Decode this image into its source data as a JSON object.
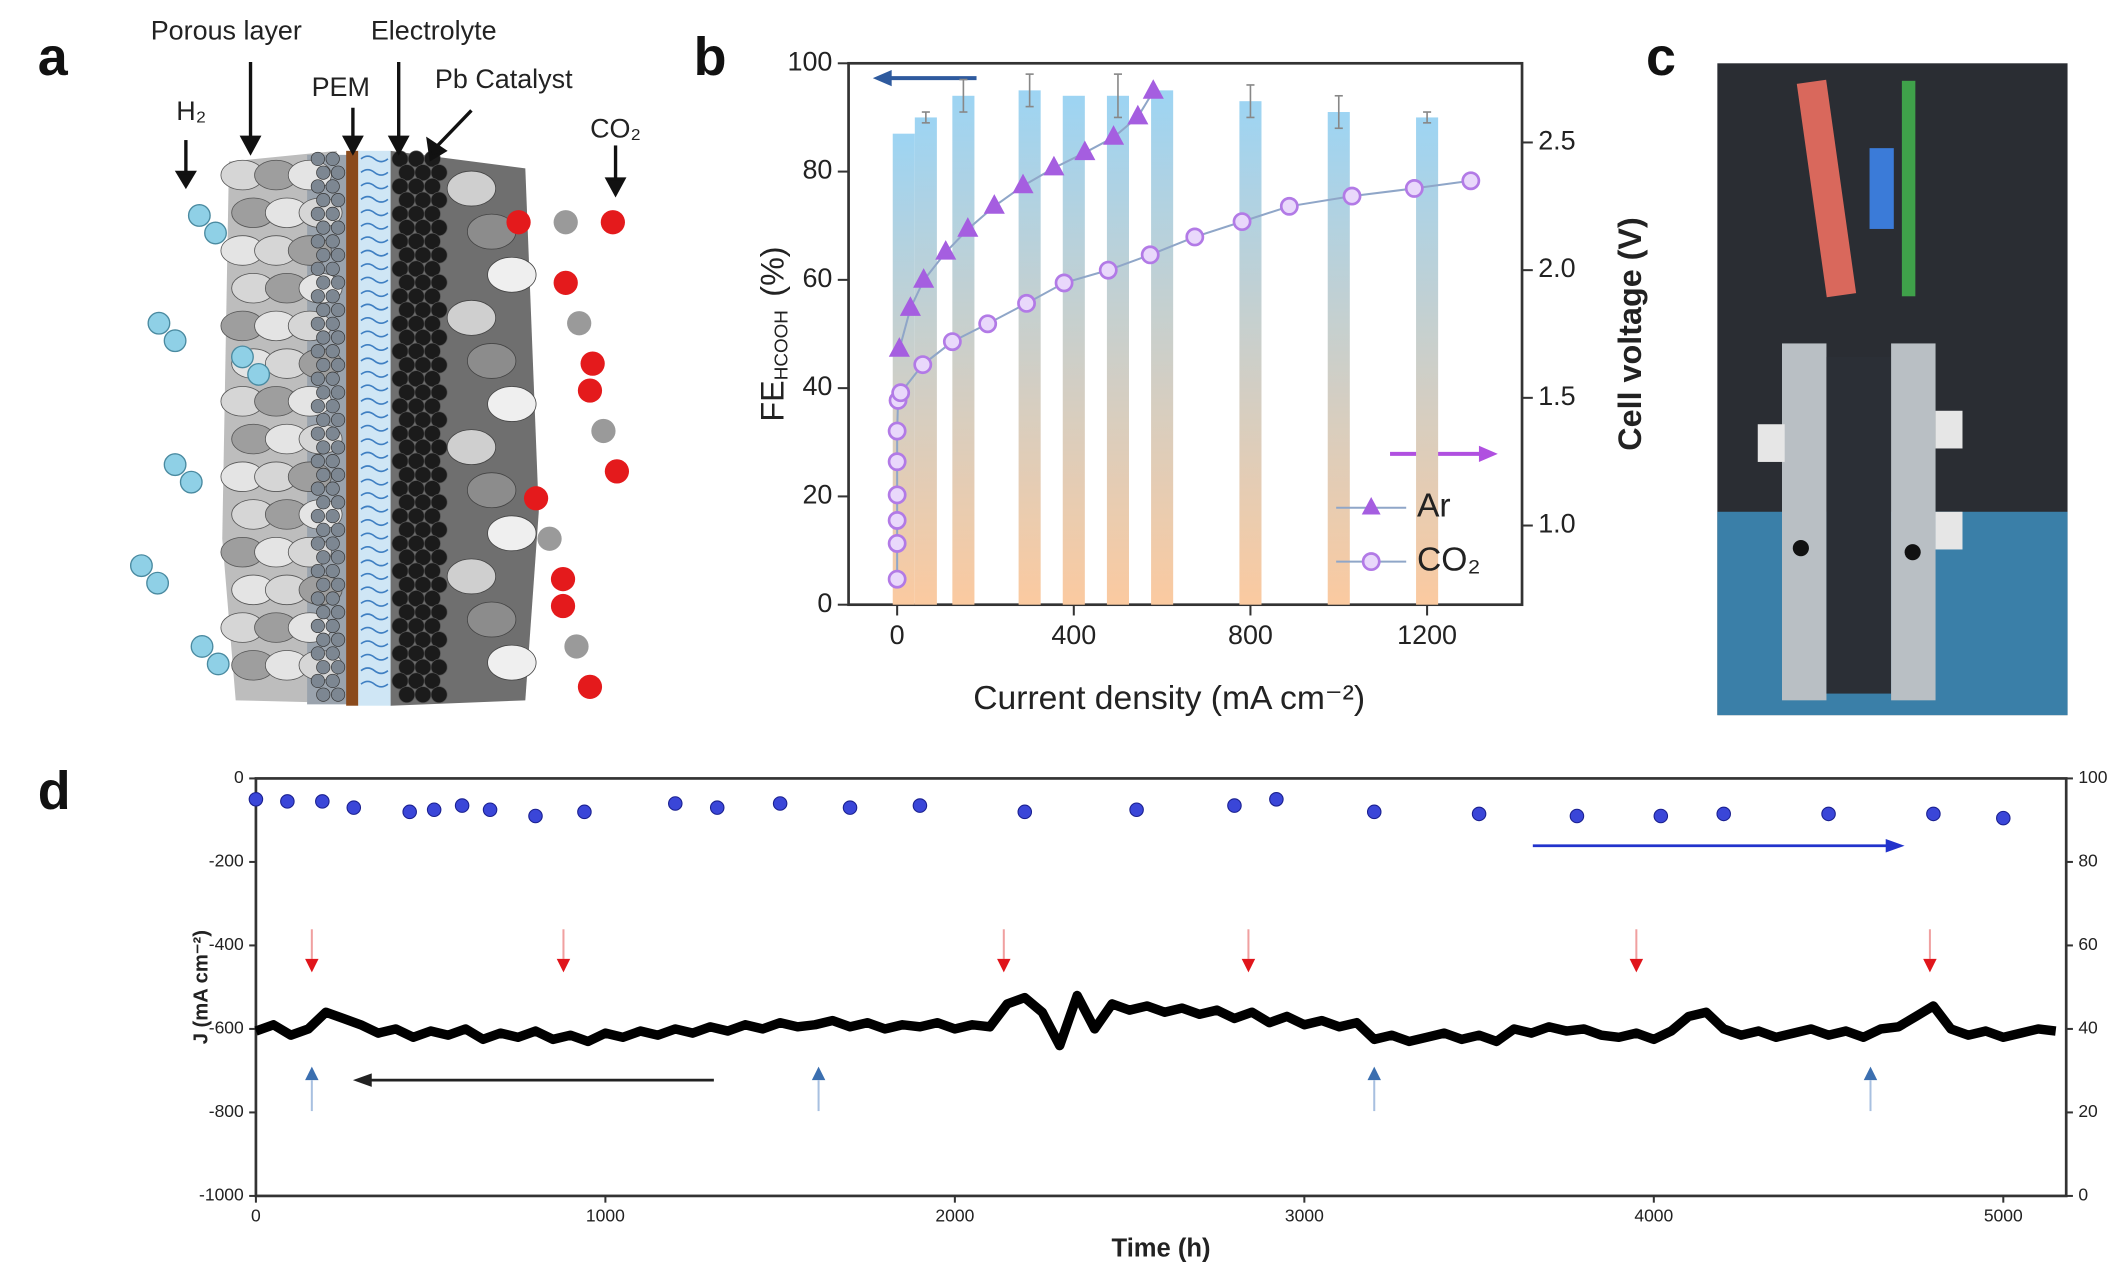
{
  "panel_labels": [
    "a",
    "b",
    "c",
    "d"
  ],
  "diagram": {
    "porous_layer": "Porous layer",
    "electrolyte": "Electrolyte",
    "pem": "PEM",
    "catalyst": "Pb Catalyst",
    "h2": "H₂",
    "co2": "CO₂"
  },
  "chart_data": [
    {
      "type": "combo",
      "xlabel": "Current density (mA cm⁻²)",
      "ylabel": {
        "main": "FE",
        "sub": "HCOOH",
        "unit": "(%)"
      },
      "y2label": "Cell voltage (V)",
      "xlim": [
        -110,
        1415
      ],
      "xticks": [
        0,
        400,
        800,
        1200
      ],
      "ylim": [
        0,
        100
      ],
      "yticks": [
        0,
        20,
        40,
        60,
        80,
        100
      ],
      "y2lim": [
        0.69,
        2.81
      ],
      "y2ticks": [
        {
          "value": 1,
          "label": "1.0"
        },
        1.5,
        {
          "value": 2,
          "label": "2.0"
        },
        2.5
      ],
      "bars": {
        "x": [
          15,
          65,
          150,
          300,
          400,
          500,
          600,
          800,
          1000,
          1200
        ],
        "values": [
          87,
          90,
          94,
          95,
          94,
          94,
          95,
          93,
          91,
          90
        ],
        "errors": [
          0,
          1,
          3,
          3,
          0,
          4,
          0,
          3,
          3,
          1
        ],
        "colors": [
          "#9dd4f3",
          "#fbcaa0"
        ]
      },
      "series": [
        {
          "name": "Ar",
          "color": "#a55ee0",
          "marker": "triangle",
          "axis": "y2",
          "x": [
            5,
            30,
            60,
            110,
            160,
            220,
            285,
            355,
            425,
            490,
            545,
            580
          ],
          "values": [
            1.69,
            1.85,
            1.96,
            2.07,
            2.16,
            2.25,
            2.33,
            2.4,
            2.46,
            2.52,
            2.6,
            2.7
          ]
        },
        {
          "name": "CO₂",
          "color": "#b27ae6",
          "marker": "circle",
          "axis": "y2",
          "x": [
            0,
            0,
            0,
            0,
            0,
            0,
            2,
            8,
            58,
            125,
            205,
            293,
            378,
            478,
            573,
            674,
            781,
            888,
            1030,
            1171,
            1299
          ],
          "values": [
            0.79,
            0.93,
            1.02,
            1.12,
            1.25,
            1.37,
            1.49,
            1.52,
            1.63,
            1.72,
            1.79,
            1.87,
            1.95,
            2.0,
            2.06,
            2.13,
            2.19,
            2.25,
            2.29,
            2.32,
            2.35
          ]
        }
      ],
      "legend": "lower right"
    },
    {
      "type": "line_scatter",
      "xlabel": "Time (h)",
      "ylabel": "J (mA cm⁻²)",
      "xlim": [
        0,
        5180
      ],
      "xticks": [
        0,
        1000,
        2000,
        3000,
        4000,
        5000
      ],
      "ylim": [
        -1000,
        0
      ],
      "yticks": [
        -1000,
        -800,
        -600,
        -400,
        -200,
        0
      ],
      "y2lim": [
        0,
        100
      ],
      "y2ticks": [
        0,
        20,
        40,
        60,
        80,
        100
      ],
      "series": [
        {
          "color": "#000000",
          "x": [
            0,
            50,
            100,
            150,
            200,
            250,
            300,
            350,
            400,
            450,
            500,
            550,
            600,
            650,
            700,
            750,
            800,
            850,
            900,
            950,
            1000,
            1050,
            1100,
            1150,
            1200,
            1250,
            1300,
            1350,
            1400,
            1450,
            1500,
            1550,
            1600,
            1650,
            1700,
            1750,
            1800,
            1850,
            1900,
            1950,
            2000,
            2050,
            2100,
            2150,
            2200,
            2250,
            2300,
            2350,
            2400,
            2450,
            2500,
            2550,
            2600,
            2650,
            2700,
            2750,
            2800,
            2850,
            2900,
            2950,
            3000,
            3050,
            3100,
            3150,
            3200,
            3250,
            3300,
            3350,
            3400,
            3450,
            3500,
            3550,
            3600,
            3650,
            3700,
            3750,
            3800,
            3850,
            3900,
            3950,
            4000,
            4050,
            4100,
            4150,
            4200,
            4250,
            4300,
            4350,
            4400,
            4450,
            4500,
            4550,
            4600,
            4650,
            4700,
            4750,
            4800,
            4850,
            4900,
            4950,
            5000,
            5050,
            5100,
            5150
          ],
          "values": [
            -605,
            -590,
            -615,
            -600,
            -560,
            -575,
            -590,
            -610,
            -600,
            -620,
            -605,
            -615,
            -600,
            -625,
            -610,
            -620,
            -605,
            -625,
            -615,
            -630,
            -610,
            -620,
            -605,
            -615,
            -600,
            -610,
            -595,
            -605,
            -590,
            -600,
            -585,
            -595,
            -590,
            -580,
            -595,
            -585,
            -600,
            -590,
            -595,
            -585,
            -600,
            -590,
            -595,
            -540,
            -525,
            -560,
            -640,
            -520,
            -600,
            -540,
            -555,
            -545,
            -560,
            -550,
            -565,
            -555,
            -575,
            -560,
            -585,
            -570,
            -590,
            -580,
            -595,
            -585,
            -625,
            -615,
            -630,
            -620,
            -610,
            -625,
            -615,
            -630,
            -600,
            -610,
            -595,
            -605,
            -600,
            -615,
            -620,
            -610,
            -625,
            -605,
            -570,
            -560,
            -600,
            -615,
            -605,
            -620,
            -610,
            -600,
            -615,
            -605,
            -620,
            -600,
            -595,
            -570,
            -545,
            -600,
            -615,
            -605,
            -620,
            -610,
            -600,
            -605
          ]
        },
        {
          "color": "#3a46d8",
          "marker": "circle",
          "axis": "y2",
          "x": [
            0,
            90,
            190,
            280,
            440,
            510,
            590,
            670,
            800,
            940,
            1200,
            1320,
            1500,
            1700,
            1900,
            2200,
            2520,
            2800,
            2920,
            3200,
            3500,
            3780,
            4020,
            4200,
            4500,
            4800,
            5000
          ],
          "values": [
            95,
            94.5,
            94.5,
            93,
            92,
            92.5,
            93.5,
            92.5,
            91,
            92,
            94,
            93,
            94,
            93,
            93.5,
            92,
            92.5,
            93.5,
            95,
            92,
            91.5,
            91,
            91,
            91.5,
            91.5,
            91.5,
            90.5
          ]
        }
      ],
      "down_arrows": {
        "color": "#e0151b",
        "x": [
          160,
          880,
          2140,
          2840,
          3950,
          4790
        ]
      },
      "up_arrows": {
        "color": "#3b6fb0",
        "x": [
          160,
          1610,
          3200,
          4620
        ]
      }
    }
  ]
}
